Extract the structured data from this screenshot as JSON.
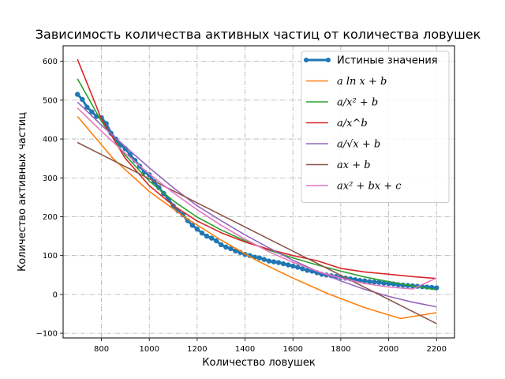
{
  "chart_data": {
    "type": "line",
    "title": "Зависимость количества активных частиц от количества ловушек",
    "xlabel": "Количество ловушек",
    "ylabel": "Количество активных частиц",
    "xlim": [
      640,
      2275
    ],
    "ylim": [
      -112,
      640
    ],
    "xticks": [
      800,
      1000,
      1200,
      1400,
      1600,
      1800,
      2000,
      2200
    ],
    "yticks": [
      -100,
      0,
      100,
      200,
      300,
      400,
      500,
      600
    ],
    "grid": true,
    "grid_style": "dash-dot",
    "legend_position": "top-right",
    "true_series": {
      "name": "Истиные значения",
      "color": "#1f77b4",
      "x": [
        700,
        720,
        740,
        760,
        780,
        800,
        820,
        840,
        860,
        880,
        900,
        920,
        940,
        960,
        980,
        1000,
        1020,
        1040,
        1060,
        1080,
        1100,
        1120,
        1140,
        1160,
        1180,
        1200,
        1220,
        1240,
        1260,
        1280,
        1300,
        1320,
        1340,
        1360,
        1380,
        1400,
        1420,
        1440,
        1460,
        1480,
        1500,
        1520,
        1540,
        1560,
        1580,
        1600,
        1620,
        1640,
        1660,
        1680,
        1700,
        1720,
        1740,
        1760,
        1780,
        1800,
        1820,
        1840,
        1860,
        1880,
        1900,
        1920,
        1940,
        1960,
        1980,
        2000,
        2020,
        2040,
        2060,
        2080,
        2100,
        2120,
        2140,
        2160,
        2180,
        2200
      ],
      "y": [
        515,
        502,
        482,
        470,
        458,
        455,
        440,
        415,
        400,
        385,
        375,
        360,
        345,
        330,
        315,
        308,
        290,
        275,
        260,
        245,
        228,
        215,
        205,
        190,
        178,
        168,
        158,
        150,
        145,
        138,
        128,
        122,
        118,
        112,
        108,
        103,
        100,
        96,
        94,
        90,
        86,
        84,
        82,
        79,
        76,
        73,
        70,
        66,
        62,
        60,
        56,
        52,
        50,
        48,
        46,
        44,
        42,
        40,
        38,
        36,
        35,
        33,
        32,
        31,
        29,
        28,
        27,
        25,
        24,
        23,
        22,
        21,
        20,
        19,
        18,
        17
      ]
    },
    "fits": [
      {
        "name": "a ln x + b",
        "color": "#ff7f0e",
        "x": [
          700,
          850,
          1000,
          1150,
          1300,
          1450,
          1600,
          1750,
          1900,
          2050,
          2200
        ],
        "y": [
          458,
          349,
          265,
          198,
          140,
          87,
          42,
          1,
          -34,
          -62,
          -47
        ]
      },
      {
        "name": "a/x² + b",
        "color": "#2ca02c",
        "x": [
          700,
          800,
          900,
          1000,
          1100,
          1200,
          1300,
          1400,
          1500,
          1600,
          1700,
          1800,
          1900,
          2000,
          2100,
          2200
        ],
        "y": [
          555,
          446,
          358,
          292,
          241,
          199,
          166,
          138,
          114,
          94,
          76,
          60,
          45,
          33,
          22,
          12
        ]
      },
      {
        "name": "a/x^b",
        "color": "#d62728",
        "x": [
          700,
          800,
          900,
          1000,
          1100,
          1200,
          1300,
          1400,
          1500,
          1600,
          1700,
          1800,
          1900,
          2000,
          2100,
          2200
        ],
        "y": [
          605,
          452,
          350,
          280,
          229,
          189,
          159,
          135,
          116,
          100,
          87,
          67,
          58,
          52,
          46,
          41
        ]
      },
      {
        "name": "a/√x + b",
        "color": "#9467bd",
        "x": [
          700,
          800,
          900,
          1000,
          1100,
          1200,
          1300,
          1400,
          1500,
          1600,
          1700,
          1800,
          1900,
          2000,
          2100,
          2200
        ],
        "y": [
          495,
          436,
          380,
          326,
          275,
          228,
          190,
          153,
          120,
          88,
          60,
          35,
          13,
          -5,
          -20,
          -32
        ]
      },
      {
        "name": "ax + b",
        "color": "#8c564b",
        "x": [
          700,
          2200
        ],
        "y": [
          391,
          -75
        ]
      },
      {
        "name": "ax² + bx + c",
        "color": "#e377c2",
        "x": [
          700,
          800,
          900,
          1000,
          1100,
          1200,
          1300,
          1400,
          1500,
          1600,
          1700,
          1800,
          1900,
          2000,
          2100,
          2200
        ],
        "y": [
          480,
          420,
          363,
          310,
          262,
          218,
          178,
          142,
          110,
          83,
          60,
          42,
          28,
          19,
          14,
          42
        ]
      }
    ]
  },
  "legend": {
    "items": [
      {
        "label": "Истиные значения",
        "color": "#1f77b4",
        "kind": "marker"
      },
      {
        "label": "a ln x + b",
        "color": "#ff7f0e",
        "kind": "line"
      },
      {
        "label": "a/x² + b",
        "color": "#2ca02c",
        "kind": "line"
      },
      {
        "label": "a/x^b",
        "color": "#d62728",
        "kind": "line"
      },
      {
        "label": "a/√x + b",
        "color": "#9467bd",
        "kind": "line"
      },
      {
        "label": "ax + b",
        "color": "#8c564b",
        "kind": "line"
      },
      {
        "label": "ax² + bx + c",
        "color": "#e377c2",
        "kind": "line"
      }
    ]
  }
}
